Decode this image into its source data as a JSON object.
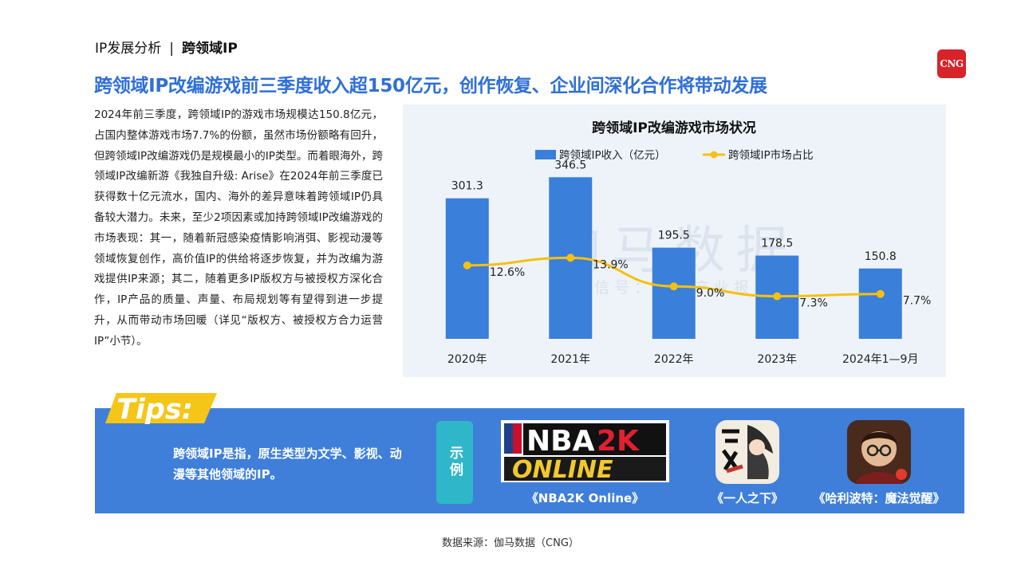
{
  "breadcrumb": {
    "section": "IP发展分析",
    "separator": "|",
    "topic": "跨领域IP"
  },
  "logo": {
    "text": "CNG"
  },
  "headline": "跨领域IP改编游戏前三季度收入超150亿元，创作恢复、企业间深化合作将带动发展",
  "body": "2024年前三季度，跨领域IP的游戏市场规模达150.8亿元，占国内整体游戏市场7.7%的份额，虽然市场份额略有回升，但跨领域IP改编游戏仍是规模最小的IP类型。而着眼海外，跨领域IP改编新游《我独自升级: Arise》在2024年前三季度已获得数十亿元流水，国内、海外的差异意味着跨领域IP仍具备较大潜力。未来，至少2项因素或加持跨领域IP改编游戏的市场表现：其一，随着新冠感染疫情影响消弭、影视动漫等领域恢复创作，高价值IP的供给将逐步恢复，并为改编为游戏提供IP来源；其二，随着更多IP版权方与被授权方深化合作，IP产品的质量、声量、布局规划等有望得到进一步提升，从而带动市场回暖（详见“版权方、被授权方合力运营IP”小节）。",
  "watermark": {
    "main": "伽马数据",
    "sub": "微信号：游戏产业报告"
  },
  "chart_data": {
    "type": "bar",
    "title": "跨领域IP改编游戏市场状况",
    "categories": [
      "2020年",
      "2021年",
      "2022年",
      "2023年",
      "2024年1—9月"
    ],
    "series": [
      {
        "name": "跨领域IP收入（亿元）",
        "type": "bar",
        "values": [
          301.3,
          346.5,
          195.5,
          178.5,
          150.8
        ],
        "labels": [
          "301.3",
          "346.5",
          "195.5",
          "178.5",
          "150.8"
        ],
        "color": "#3a7fd9"
      },
      {
        "name": "跨领域IP市场占比",
        "type": "line",
        "values": [
          12.6,
          13.9,
          9.0,
          7.3,
          7.7
        ],
        "labels": [
          "12.6%",
          "13.9%",
          "9.0%",
          "7.3%",
          "7.7%"
        ],
        "color": "#f5c010"
      }
    ],
    "ylim_bar": [
      0,
      400
    ],
    "ylim_line": [
      0,
      32
    ],
    "legend_position": "top-center",
    "grid": false
  },
  "tips": {
    "tag": "Tips:",
    "text": "跨领域IP是指，原生类型为文学、影视、动漫等其他领域的IP。",
    "example_label": "示例",
    "games": [
      {
        "name": "《NBA2K Online》",
        "icon": "nba2k-online-logo"
      },
      {
        "name": "《一人之下》",
        "icon": "yirenzhixia-app-icon"
      },
      {
        "name": "《哈利波特：魔法觉醒》",
        "icon": "harry-potter-app-icon"
      }
    ]
  },
  "source": "数据来源：伽马数据（CNG）",
  "colors": {
    "accent": "#2f6fd6",
    "band": "#3f7fda",
    "tag": "#f5c518",
    "example": "#2fb7c9",
    "panel": "#eef3fa"
  }
}
